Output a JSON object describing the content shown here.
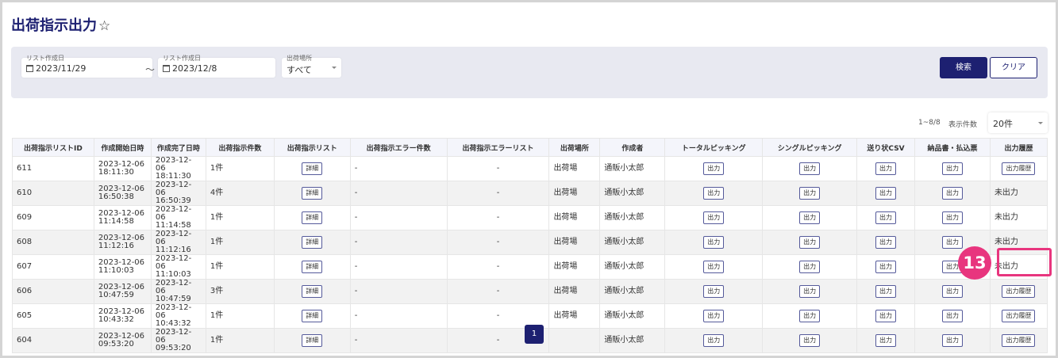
{
  "title": "出荷指示出力",
  "star": "☆",
  "filter": {
    "from_label": "リスト作成日",
    "from_value": "2023/11/29",
    "tilde": "～",
    "to_label": "リスト作成日",
    "to_value": "2023/12/8",
    "place_label": "出荷場所",
    "place_value": "すべて",
    "search": "検索",
    "clear": "クリア"
  },
  "count": "1~8/8",
  "per_page_label": "表示件数",
  "per_page": "20件",
  "headers": [
    "出荷指示リストID",
    "作成開始日時",
    "作成完了日時",
    "出荷指示件数",
    "出荷指示リスト",
    "出荷指示エラー件数",
    "出荷指示エラーリスト",
    "出荷場所",
    "作成者",
    "トータルピッキング",
    "シングルピッキング",
    "送り状CSV",
    "納品書・払込票",
    "出力履歴"
  ],
  "detail": "詳細",
  "output": "出力",
  "history": "出力履歴",
  "not_output": "未出力",
  "rows": [
    {
      "id": "611",
      "start": [
        "2023-12-06",
        "18:11:30"
      ],
      "end": [
        "2023-12-06",
        "18:11:30"
      ],
      "count": "1件",
      "err": "-",
      "errlist": "-",
      "place": "出荷場",
      "author": "通販小太郎",
      "hist": true
    },
    {
      "id": "610",
      "start": [
        "2023-12-06",
        "16:50:38"
      ],
      "end": [
        "2023-12-06",
        "16:50:39"
      ],
      "count": "4件",
      "err": "-",
      "errlist": "-",
      "place": "出荷場",
      "author": "通販小太郎",
      "hist": false
    },
    {
      "id": "609",
      "start": [
        "2023-12-06",
        "11:14:58"
      ],
      "end": [
        "2023-12-06",
        "11:14:58"
      ],
      "count": "1件",
      "err": "-",
      "errlist": "-",
      "place": "出荷場",
      "author": "通販小太郎",
      "hist": false
    },
    {
      "id": "608",
      "start": [
        "2023-12-06",
        "11:12:16"
      ],
      "end": [
        "2023-12-06",
        "11:12:16"
      ],
      "count": "1件",
      "err": "-",
      "errlist": "-",
      "place": "出荷場",
      "author": "通販小太郎",
      "hist": false
    },
    {
      "id": "607",
      "start": [
        "2023-12-06",
        "11:10:03"
      ],
      "end": [
        "2023-12-06",
        "11:10:03"
      ],
      "count": "1件",
      "err": "-",
      "errlist": "-",
      "place": "出荷場",
      "author": "通販小太郎",
      "hist": false
    },
    {
      "id": "606",
      "start": [
        "2023-12-06",
        "10:47:59"
      ],
      "end": [
        "2023-12-06",
        "10:47:59"
      ],
      "count": "3件",
      "err": "-",
      "errlist": "-",
      "place": "出荷場",
      "author": "通販小太郎",
      "hist": true
    },
    {
      "id": "605",
      "start": [
        "2023-12-06",
        "10:43:32"
      ],
      "end": [
        "2023-12-06",
        "10:43:32"
      ],
      "count": "1件",
      "err": "-",
      "errlist": "-",
      "place": "出荷場",
      "author": "通販小太郎",
      "hist": true
    },
    {
      "id": "604",
      "start": [
        "2023-12-06",
        "09:53:20"
      ],
      "end": [
        "2023-12-06",
        "09:53:20"
      ],
      "count": "1件",
      "err": "-",
      "errlist": "-",
      "place": "",
      "author": "通販小太郎",
      "hist": true
    }
  ],
  "page": "1",
  "marker": "13",
  "colors": {
    "primary": "#1d2071",
    "marker": "#e8357e"
  }
}
